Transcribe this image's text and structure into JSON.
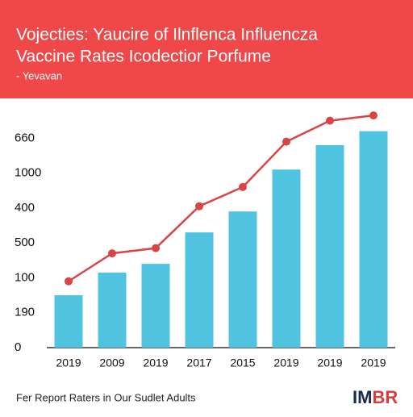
{
  "chart_data": {
    "type": "bar_line",
    "title": "Vojecties: Yaucire of Ilnflenca Influencza",
    "subtitle": "Vaccine Rates Icodectior Porfume",
    "note": "- Yevavan",
    "footer": "Fer Report Raters in Our Sudlet Adults",
    "logo": [
      "IM",
      "BR"
    ],
    "categories": [
      "2019",
      "2009",
      "2019",
      "2017",
      "2015",
      "2019",
      "2019",
      "2019"
    ],
    "series": [
      {
        "type": "bar",
        "color": "#4fc3e0",
        "values": [
          1.5,
          2.15,
          2.4,
          3.3,
          3.9,
          5.1,
          5.8,
          6.2
        ]
      },
      {
        "type": "line",
        "color": "#d94444",
        "values": [
          1.9,
          2.7,
          2.85,
          4.05,
          4.6,
          5.9,
          6.5,
          6.65
        ]
      }
    ],
    "ylim": [
      0,
      7
    ],
    "yticks": [
      {
        "value": 0,
        "label": "0"
      },
      {
        "value": 1,
        "label": "190"
      },
      {
        "value": 2,
        "label": "100"
      },
      {
        "value": 3,
        "label": "500"
      },
      {
        "value": 4,
        "label": "400"
      },
      {
        "value": 5,
        "label": "1000"
      },
      {
        "value": 6,
        "label": "660"
      }
    ]
  }
}
